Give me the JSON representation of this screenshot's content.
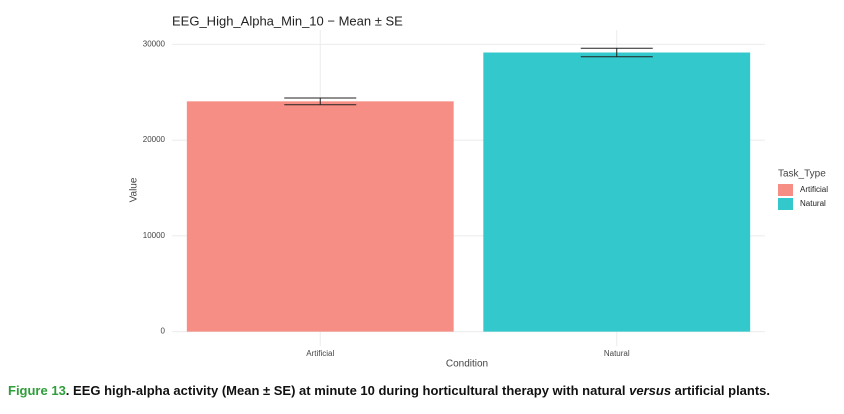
{
  "chart_data": {
    "type": "bar",
    "title": "EEG_High_Alpha_Min_10 − Mean ± SE",
    "x_label": "Condition",
    "y_label": "Value",
    "categories": [
      "Artificial",
      "Natural"
    ],
    "values": [
      24050,
      29150
    ],
    "errors": [
      350,
      450
    ],
    "colors": [
      "#f78e85",
      "#33c9cc"
    ],
    "legend_title": "Task_Type",
    "legend_position": "right",
    "ylim": [
      -1500,
      31500
    ],
    "yticks": [
      0,
      10000,
      20000,
      30000
    ],
    "grid": true
  },
  "caption": {
    "label": "Figure 13",
    "text_1": ". EEG high-alpha activity (Mean ± SE) at minute 10 during horticultural therapy with natural ",
    "italic": "versus",
    "text_2": " artificial plants."
  }
}
